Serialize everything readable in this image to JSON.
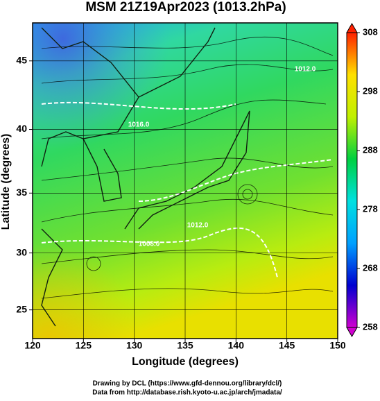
{
  "chart_data": {
    "type": "map",
    "projection": "mercator",
    "title": "MSM 21Z19Apr2023 (1013.2hPa)",
    "x_label": "Longitude (degrees)",
    "y_label": "Latitude  (degrees)",
    "xlim": [
      120,
      150
    ],
    "xticks": [
      120,
      125,
      130,
      135,
      140,
      145,
      150
    ],
    "ylim": [
      22.4,
      47.6
    ],
    "yticks": [
      25,
      30,
      35,
      40,
      45
    ],
    "grid": true,
    "colorbar": {
      "lim": [
        258,
        308
      ],
      "ticks": [
        258,
        268,
        278,
        288,
        298,
        308
      ],
      "colors": [
        "#d000d0",
        "#0000d0",
        "#00a0ff",
        "#00e0e0",
        "#00d040",
        "#c0f000",
        "#ffe000",
        "#ff2000"
      ]
    },
    "annotations": [
      "1012.0",
      "1008.0",
      "1012.0",
      "1016.0"
    ],
    "credits": [
      "Drawing by DCL (https://www.gfd-dennou.org/library/dcl/)",
      "Data from http://database.rish.kyoto-u.ac.jp/arch/jmadata/"
    ]
  }
}
